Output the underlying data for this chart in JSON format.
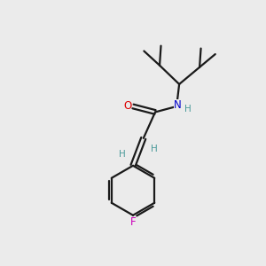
{
  "bg_color": "#ebebeb",
  "line_color": "#1a1a1a",
  "bond_lw": 1.6,
  "font_size_atom": 8.5,
  "font_size_h": 7.5,
  "O_color": "#dd0000",
  "N_color": "#0000cc",
  "F_color": "#cc00bb",
  "H_color": "#4a9a9a",
  "figsize": [
    3.0,
    3.0
  ],
  "dpi": 100,
  "xlim": [
    0,
    10
  ],
  "ylim": [
    0,
    10
  ]
}
